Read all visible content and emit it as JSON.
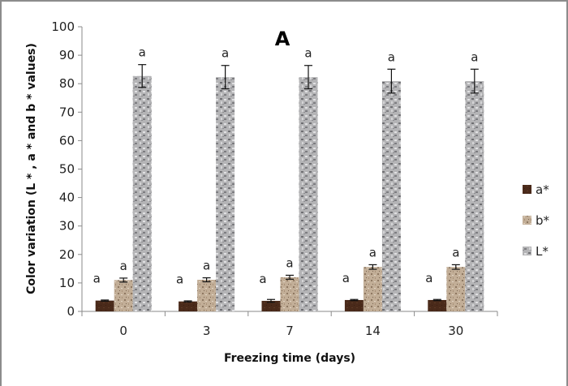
{
  "chart_data": {
    "type": "bar",
    "title": "A",
    "xlabel": "Freezing time (days)",
    "ylabel": "Color variation (L * , a * and b * values)",
    "categories": [
      "0",
      "3",
      "7",
      "14",
      "30"
    ],
    "ylim": [
      0,
      100
    ],
    "yticks": [
      0,
      10,
      20,
      30,
      40,
      50,
      60,
      70,
      80,
      90,
      100
    ],
    "grid": false,
    "legend_position": "right",
    "series": [
      {
        "name": "a*",
        "color": "#4a2a1a",
        "values": [
          3.8,
          3.5,
          3.7,
          4.0,
          4.0
        ],
        "errors": [
          0.2,
          0.2,
          0.5,
          0.2,
          0.2
        ],
        "labels": [
          "a",
          "a",
          "a",
          "a",
          "a"
        ]
      },
      {
        "name": "b*",
        "color": "#b8a48e",
        "values": [
          11.0,
          11.1,
          12.0,
          15.6,
          15.6
        ],
        "errors": [
          0.7,
          0.7,
          0.7,
          0.8,
          0.8
        ],
        "labels": [
          "a",
          "a",
          "a",
          "a",
          "a"
        ]
      },
      {
        "name": "L*",
        "color": "#a9a9ab",
        "values": [
          82.7,
          82.3,
          82.3,
          80.9,
          80.9
        ],
        "errors": [
          4.0,
          4.1,
          4.1,
          4.2,
          4.2
        ],
        "labels": [
          "a",
          "a",
          "a",
          "a",
          "a"
        ]
      }
    ]
  }
}
